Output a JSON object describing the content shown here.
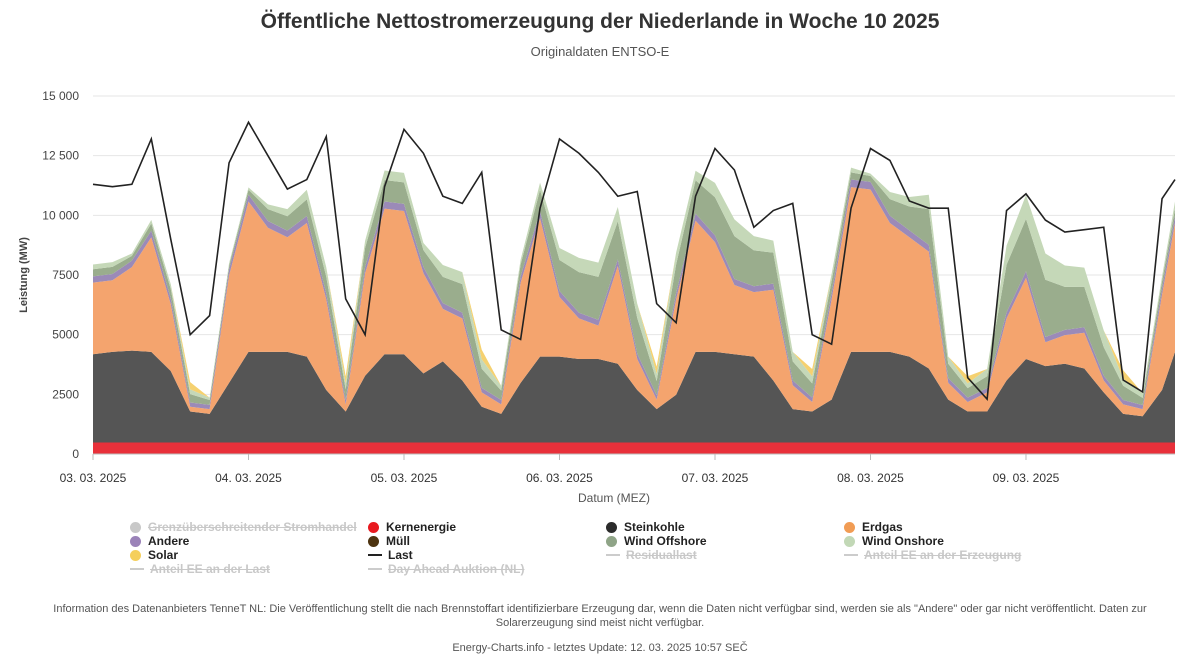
{
  "chart_data": {
    "type": "area",
    "title": "Öffentliche Nettostromerzeugung der Niederlande in Woche 10 2025",
    "subtitle": "Originaldaten ENTSO-E",
    "xlabel": "Datum (MEZ)",
    "ylabel": "Leistung (MW)",
    "ylim": [
      0,
      15000
    ],
    "yticks": [
      0,
      2500,
      5000,
      7500,
      10000,
      12500,
      15000
    ],
    "ytick_labels": [
      "0",
      "2500",
      "5000",
      "7500",
      "10 000",
      "12 500",
      "15 000"
    ],
    "xtick_labels": [
      "03. 03. 2025",
      "04. 03. 2025",
      "05. 03. 2025",
      "06. 03. 2025",
      "07. 03. 2025",
      "08. 03. 2025",
      "09. 03. 2025"
    ],
    "grid": true,
    "legend_position": "bottom",
    "x_hours": [
      0,
      3,
      6,
      9,
      12,
      15,
      18,
      21,
      24,
      27,
      30,
      33,
      36,
      39,
      42,
      45,
      48,
      51,
      54,
      57,
      60,
      63,
      66,
      69,
      72,
      75,
      78,
      81,
      84,
      87,
      90,
      93,
      96,
      99,
      102,
      105,
      108,
      111,
      114,
      117,
      120,
      123,
      126,
      129,
      132,
      135,
      138,
      141,
      144,
      147,
      150,
      153,
      156,
      159,
      162,
      165,
      167
    ],
    "series": [
      {
        "name": "Kernenergie",
        "color": "#e8303a",
        "values": [
          480,
          480,
          480,
          480,
          480,
          480,
          480,
          480,
          480,
          480,
          480,
          480,
          480,
          480,
          480,
          480,
          480,
          480,
          480,
          480,
          480,
          480,
          480,
          480,
          480,
          480,
          480,
          480,
          480,
          480,
          480,
          480,
          480,
          480,
          480,
          480,
          480,
          480,
          480,
          480,
          480,
          480,
          480,
          480,
          480,
          480,
          480,
          480,
          480,
          480,
          480,
          480,
          480,
          480,
          480,
          480,
          480
        ]
      },
      {
        "name": "Steinkohle",
        "color": "#555555",
        "values": [
          3700,
          3800,
          3850,
          3800,
          3000,
          1300,
          1200,
          2500,
          3800,
          3800,
          3800,
          3600,
          2200,
          1300,
          2800,
          3700,
          3700,
          2900,
          3400,
          2600,
          1500,
          1200,
          2500,
          3600,
          3600,
          3500,
          3500,
          3300,
          2200,
          1400,
          2000,
          3800,
          3800,
          3700,
          3600,
          2600,
          1400,
          1300,
          1800,
          3800,
          3800,
          3800,
          3600,
          3100,
          1800,
          1300,
          1300,
          2600,
          3500,
          3200,
          3300,
          3100,
          2100,
          1200,
          1100,
          2200,
          3800
        ]
      },
      {
        "name": "Erdgas",
        "color": "#f4a46e",
        "values": [
          3000,
          3000,
          3500,
          4800,
          2800,
          200,
          200,
          4500,
          6300,
          5200,
          4800,
          5600,
          3800,
          300,
          4300,
          6100,
          6000,
          4200,
          2200,
          2600,
          600,
          400,
          4200,
          5800,
          2500,
          1700,
          1400,
          4100,
          1300,
          400,
          4000,
          5500,
          4600,
          2900,
          2700,
          3800,
          1000,
          400,
          4200,
          6900,
          6800,
          5400,
          5000,
          4900,
          700,
          400,
          800,
          2600,
          3400,
          1000,
          1200,
          1500,
          500,
          400,
          300,
          4000,
          5400
        ]
      },
      {
        "name": "Andere",
        "color": "#9b8ab8",
        "values": [
          260,
          260,
          270,
          280,
          240,
          180,
          180,
          260,
          290,
          280,
          280,
          290,
          250,
          180,
          260,
          300,
          300,
          260,
          240,
          240,
          190,
          180,
          260,
          290,
          250,
          240,
          240,
          270,
          220,
          180,
          260,
          290,
          280,
          250,
          250,
          260,
          200,
          180,
          270,
          320,
          320,
          300,
          290,
          280,
          200,
          180,
          180,
          250,
          270,
          220,
          220,
          230,
          200,
          180,
          170,
          260,
          300
        ]
      },
      {
        "name": "Wind Offshore",
        "color": "#9aad8d",
        "values": [
          300,
          300,
          200,
          300,
          400,
          350,
          200,
          150,
          200,
          500,
          600,
          700,
          700,
          450,
          800,
          900,
          900,
          700,
          1100,
          1200,
          800,
          400,
          500,
          900,
          1300,
          1700,
          1800,
          1600,
          1500,
          600,
          1200,
          1400,
          1600,
          1800,
          1500,
          1300,
          800,
          600,
          500,
          300,
          250,
          700,
          1000,
          1500,
          600,
          400,
          500,
          2000,
          2200,
          2400,
          1800,
          1700,
          1200,
          600,
          300,
          300,
          300
        ]
      },
      {
        "name": "Wind Onshore",
        "color": "#c5d8b8",
        "values": [
          200,
          200,
          100,
          150,
          200,
          200,
          100,
          100,
          100,
          200,
          300,
          400,
          400,
          250,
          300,
          400,
          400,
          300,
          500,
          500,
          400,
          200,
          200,
          300,
          500,
          600,
          600,
          600,
          600,
          300,
          500,
          400,
          600,
          700,
          600,
          500,
          400,
          300,
          300,
          200,
          100,
          300,
          400,
          600,
          300,
          200,
          300,
          800,
          1000,
          1100,
          900,
          800,
          700,
          300,
          200,
          200,
          300
        ]
      },
      {
        "name": "Solar",
        "color": "#f5d170",
        "values": [
          0,
          0,
          0,
          0,
          0,
          300,
          0,
          0,
          0,
          0,
          0,
          0,
          0,
          300,
          0,
          0,
          0,
          0,
          0,
          0,
          400,
          0,
          0,
          0,
          0,
          0,
          0,
          0,
          0,
          300,
          0,
          0,
          0,
          0,
          0,
          0,
          0,
          300,
          0,
          0,
          0,
          0,
          0,
          0,
          0,
          300,
          0,
          0,
          0,
          0,
          0,
          0,
          0,
          350,
          0,
          0,
          0
        ]
      },
      {
        "name": "Last",
        "color": "#222222",
        "type": "line",
        "values": [
          11300,
          11200,
          11300,
          13200,
          9000,
          5000,
          5800,
          12200,
          13900,
          12500,
          11100,
          11500,
          13300,
          6500,
          5000,
          11200,
          13600,
          12600,
          10800,
          10500,
          11800,
          5200,
          4800,
          10300,
          13200,
          12600,
          11800,
          10800,
          11000,
          6300,
          5500,
          10800,
          12800,
          11900,
          9500,
          10200,
          10500,
          5000,
          4600,
          10300,
          12800,
          12300,
          10600,
          10300,
          10300,
          3200,
          2300,
          10200,
          10900,
          9800,
          9300,
          9400,
          9500,
          3100,
          2600,
          10700,
          11500
        ]
      }
    ]
  },
  "legend": [
    {
      "label": "Grenzüberschreitender Stromhandel",
      "color": "#c8c8c8",
      "kind": "dot",
      "hidden": true
    },
    {
      "label": "Kernenergie",
      "color": "#e8191f",
      "kind": "dot",
      "hidden": false
    },
    {
      "label": "Steinkohle",
      "color": "#2b2b2b",
      "kind": "dot",
      "hidden": false
    },
    {
      "label": "Erdgas",
      "color": "#f19c54",
      "kind": "dot",
      "hidden": false
    },
    {
      "label": "Andere",
      "color": "#9a82b8",
      "kind": "dot",
      "hidden": false
    },
    {
      "label": "Müll",
      "color": "#4d3310",
      "kind": "dot",
      "hidden": false
    },
    {
      "label": "Wind Offshore",
      "color": "#8fa487",
      "kind": "dot",
      "hidden": false
    },
    {
      "label": "Wind Onshore",
      "color": "#c2d8b6",
      "kind": "dot",
      "hidden": false
    },
    {
      "label": "Solar",
      "color": "#f5cf5c",
      "kind": "dot",
      "hidden": false
    },
    {
      "label": "Last",
      "color": "#222222",
      "kind": "line",
      "hidden": false
    },
    {
      "label": "Residuallast",
      "color": "#cccccc",
      "kind": "line",
      "hidden": true
    },
    {
      "label": "Anteil EE an der Erzeugung",
      "color": "#cccccc",
      "kind": "line",
      "hidden": true
    },
    {
      "label": "Anteil EE an der Last",
      "color": "#cccccc",
      "kind": "line",
      "hidden": true
    },
    {
      "label": "Day Ahead Auktion (NL)",
      "color": "#cccccc",
      "kind": "line",
      "hidden": true
    }
  ],
  "footer": {
    "info": "Information des Datenanbieters TenneT NL: Die Veröffentlichung stellt die nach Brennstoffart identifizierbare Erzeugung dar, wenn die Daten nicht verfügbar sind, werden sie als \"Andere\" oder gar nicht veröffentlicht. Daten zur Solarerzeugung sind meist nicht verfügbar.",
    "credit": "Energy-Charts.info - letztes Update: 12. 03. 2025 10:57 SEČ"
  }
}
